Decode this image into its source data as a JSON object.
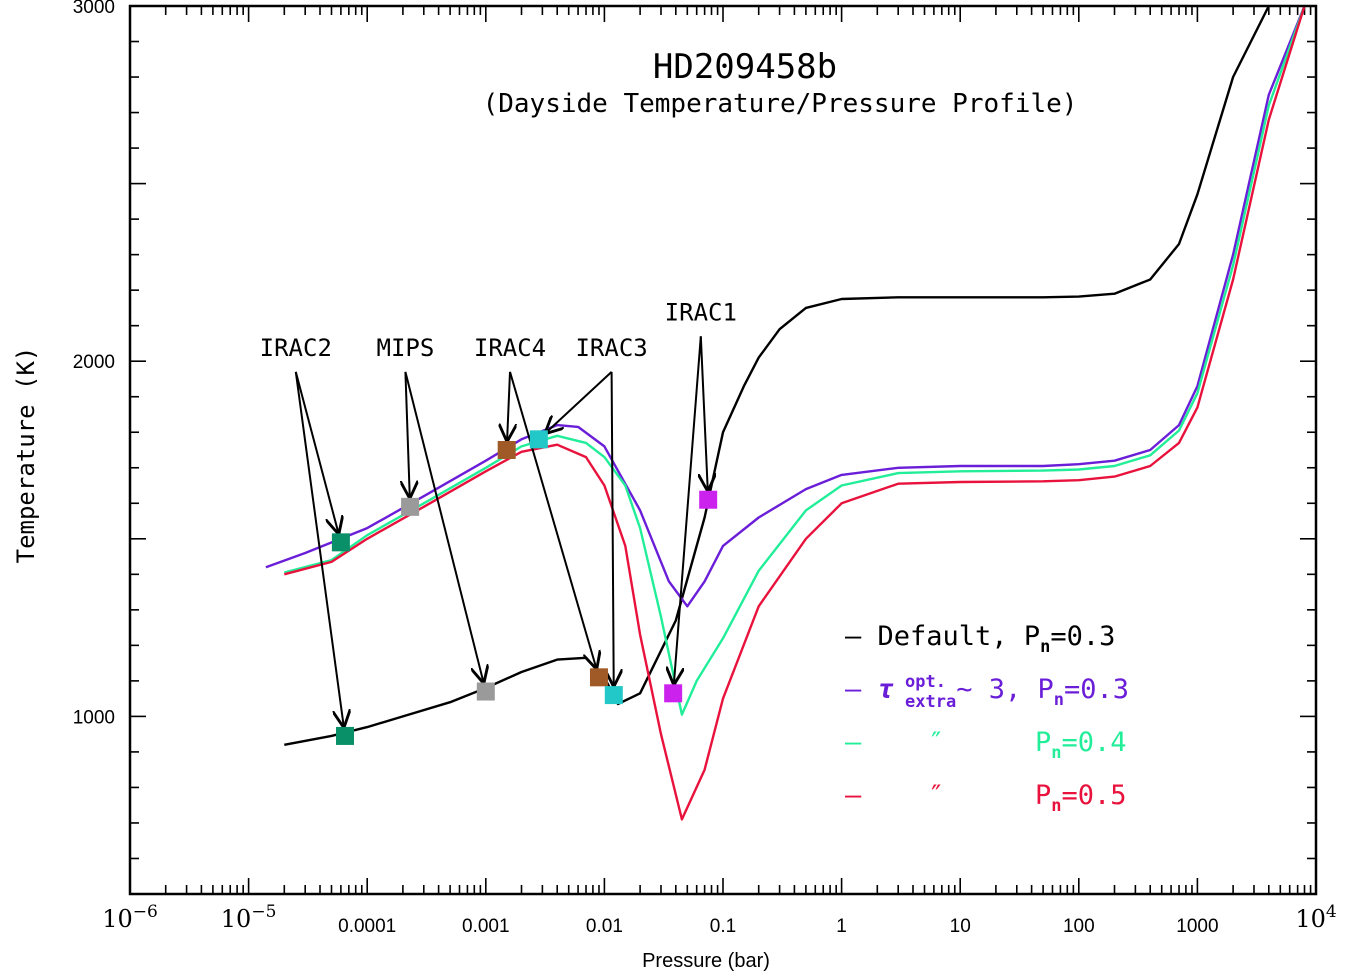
{
  "chart_data": {
    "type": "line",
    "title": "HD209458b",
    "subtitle": "(Dayside Temperature/Pressure Profile)",
    "xlabel": "Pressure (bar)",
    "ylabel": "Temperature (K)",
    "x_scale": "log",
    "xlim": [
      1e-06,
      10000
    ],
    "ylim": [
      500,
      3000
    ],
    "x_ticks": [
      {
        "value": 1e-06,
        "label": "10",
        "exp": "−6",
        "style": "big"
      },
      {
        "value": 1e-05,
        "label": "10",
        "exp": "−5",
        "style": "big"
      },
      {
        "value": 0.0001,
        "label": "0.0001"
      },
      {
        "value": 0.001,
        "label": "0.001"
      },
      {
        "value": 0.01,
        "label": "0.01"
      },
      {
        "value": 0.1,
        "label": "0.1"
      },
      {
        "value": 1,
        "label": "1"
      },
      {
        "value": 10,
        "label": "10"
      },
      {
        "value": 100,
        "label": "100"
      },
      {
        "value": 1000,
        "label": "1000"
      },
      {
        "value": 10000,
        "label": "10",
        "exp": "4",
        "style": "big"
      }
    ],
    "y_ticks": [
      {
        "value": 1000,
        "label": "1000"
      },
      {
        "value": 2000,
        "label": "2000"
      },
      {
        "value": 3000,
        "label": "3000"
      }
    ],
    "series": [
      {
        "name": "Default, Pn=0.3",
        "color": "#000000",
        "points": [
          [
            2e-05,
            920
          ],
          [
            5e-05,
            945
          ],
          [
            0.0001,
            970
          ],
          [
            0.0002,
            1000
          ],
          [
            0.0005,
            1040
          ],
          [
            0.001,
            1080
          ],
          [
            0.002,
            1125
          ],
          [
            0.004,
            1160
          ],
          [
            0.007,
            1165
          ],
          [
            0.01,
            1110
          ],
          [
            0.013,
            1035
          ],
          [
            0.02,
            1065
          ],
          [
            0.04,
            1270
          ],
          [
            0.07,
            1560
          ],
          [
            0.1,
            1800
          ],
          [
            0.15,
            1930
          ],
          [
            0.2,
            2010
          ],
          [
            0.3,
            2090
          ],
          [
            0.5,
            2150
          ],
          [
            1,
            2175
          ],
          [
            3,
            2180
          ],
          [
            10,
            2180
          ],
          [
            50,
            2180
          ],
          [
            100,
            2182
          ],
          [
            200,
            2190
          ],
          [
            400,
            2230
          ],
          [
            700,
            2330
          ],
          [
            1000,
            2470
          ],
          [
            2000,
            2800
          ],
          [
            4000,
            3000
          ]
        ]
      },
      {
        "name": "τ extra opt. ~ 3, Pn=0.3",
        "color": "#6a1ed8",
        "points": [
          [
            1.4e-05,
            1420
          ],
          [
            3e-05,
            1460
          ],
          [
            0.0001,
            1530
          ],
          [
            0.0003,
            1620
          ],
          [
            0.001,
            1720
          ],
          [
            0.002,
            1780
          ],
          [
            0.004,
            1820
          ],
          [
            0.006,
            1815
          ],
          [
            0.01,
            1760
          ],
          [
            0.02,
            1580
          ],
          [
            0.035,
            1380
          ],
          [
            0.05,
            1310
          ],
          [
            0.07,
            1380
          ],
          [
            0.1,
            1480
          ],
          [
            0.2,
            1560
          ],
          [
            0.5,
            1640
          ],
          [
            1,
            1680
          ],
          [
            3,
            1700
          ],
          [
            10,
            1705
          ],
          [
            50,
            1705
          ],
          [
            100,
            1710
          ],
          [
            200,
            1720
          ],
          [
            400,
            1750
          ],
          [
            700,
            1820
          ],
          [
            1000,
            1930
          ],
          [
            2000,
            2300
          ],
          [
            4000,
            2750
          ],
          [
            8000,
            3000
          ]
        ]
      },
      {
        "name": "Pn=0.4",
        "color": "#22ee99",
        "points": [
          [
            2e-05,
            1405
          ],
          [
            5e-05,
            1440
          ],
          [
            0.0001,
            1510
          ],
          [
            0.0003,
            1600
          ],
          [
            0.001,
            1700
          ],
          [
            0.002,
            1760
          ],
          [
            0.004,
            1790
          ],
          [
            0.007,
            1770
          ],
          [
            0.01,
            1730
          ],
          [
            0.015,
            1650
          ],
          [
            0.02,
            1530
          ],
          [
            0.03,
            1280
          ],
          [
            0.045,
            1005
          ],
          [
            0.06,
            1100
          ],
          [
            0.1,
            1220
          ],
          [
            0.2,
            1410
          ],
          [
            0.5,
            1580
          ],
          [
            1,
            1650
          ],
          [
            3,
            1685
          ],
          [
            10,
            1690
          ],
          [
            50,
            1692
          ],
          [
            100,
            1695
          ],
          [
            200,
            1705
          ],
          [
            400,
            1735
          ],
          [
            700,
            1805
          ],
          [
            1000,
            1910
          ],
          [
            2000,
            2270
          ],
          [
            4000,
            2720
          ],
          [
            8000,
            3000
          ]
        ]
      },
      {
        "name": "Pn=0.5",
        "color": "#e8123c",
        "points": [
          [
            2e-05,
            1400
          ],
          [
            5e-05,
            1435
          ],
          [
            0.0001,
            1500
          ],
          [
            0.0003,
            1590
          ],
          [
            0.001,
            1690
          ],
          [
            0.002,
            1745
          ],
          [
            0.004,
            1765
          ],
          [
            0.007,
            1730
          ],
          [
            0.01,
            1650
          ],
          [
            0.015,
            1480
          ],
          [
            0.02,
            1230
          ],
          [
            0.03,
            950
          ],
          [
            0.045,
            710
          ],
          [
            0.07,
            850
          ],
          [
            0.1,
            1050
          ],
          [
            0.2,
            1310
          ],
          [
            0.5,
            1500
          ],
          [
            1,
            1600
          ],
          [
            3,
            1655
          ],
          [
            10,
            1660
          ],
          [
            50,
            1662
          ],
          [
            100,
            1665
          ],
          [
            200,
            1675
          ],
          [
            400,
            1705
          ],
          [
            700,
            1770
          ],
          [
            1000,
            1870
          ],
          [
            2000,
            2230
          ],
          [
            4000,
            2680
          ],
          [
            8000,
            3000
          ]
        ]
      }
    ],
    "markers": [
      {
        "band": "IRAC2",
        "x": 6e-05,
        "y": 1490,
        "color": "#0a9068"
      },
      {
        "band": "MIPS",
        "x": 0.00023,
        "y": 1590,
        "color": "#9a9a9a"
      },
      {
        "band": "IRAC4",
        "x": 0.0015,
        "y": 1750,
        "color": "#a05a28"
      },
      {
        "band": "IRAC3",
        "x": 0.0028,
        "y": 1780,
        "color": "#22c8c8"
      },
      {
        "band": "IRAC1",
        "x": 0.075,
        "y": 1610,
        "color": "#cc22ee"
      },
      {
        "band": "IRAC2",
        "x": 6.5e-05,
        "y": 945,
        "color": "#0a9068"
      },
      {
        "band": "MIPS",
        "x": 0.001,
        "y": 1070,
        "color": "#9a9a9a"
      },
      {
        "band": "IRAC4",
        "x": 0.009,
        "y": 1110,
        "color": "#a05a28"
      },
      {
        "band": "IRAC3",
        "x": 0.012,
        "y": 1060,
        "color": "#22c8c8"
      },
      {
        "band": "IRAC1",
        "x": 0.038,
        "y": 1065,
        "color": "#cc22ee"
      }
    ],
    "annotations": [
      {
        "label": "IRAC2",
        "x": 2.5e-05,
        "y": 1970,
        "targets": [
          0,
          5
        ]
      },
      {
        "label": "MIPS",
        "x": 0.00021,
        "y": 1970,
        "targets": [
          1,
          6
        ]
      },
      {
        "label": "IRAC4",
        "x": 0.0016,
        "y": 1970,
        "targets": [
          2,
          7
        ]
      },
      {
        "label": "IRAC3",
        "x": 0.0115,
        "y": 1970,
        "targets": [
          3,
          8
        ]
      },
      {
        "label": "IRAC1",
        "x": 0.065,
        "y": 2070,
        "targets": [
          4,
          9
        ]
      }
    ],
    "legend": {
      "placement": "bottom-right",
      "entries": [
        {
          "color": "#000000",
          "dash": "–",
          "pre": "Default,",
          "tau": false,
          "ditto": false,
          "pn": "0.3"
        },
        {
          "color": "#6a1ed8",
          "dash": "–",
          "pre": "",
          "tau": true,
          "approx": "~ 3,",
          "ditto": false,
          "pn": "0.3"
        },
        {
          "color": "#22ee99",
          "dash": "–",
          "pre": "",
          "tau": false,
          "ditto": true,
          "pn": "0.4"
        },
        {
          "color": "#e8123c",
          "dash": "–",
          "pre": "",
          "tau": false,
          "ditto": true,
          "pn": "0.5"
        }
      ],
      "tau_symbol": "τ",
      "tau_sup": "opt.",
      "tau_sub": "extra",
      "ditto_mark": "″",
      "pn_base": "P",
      "pn_sub": "n",
      "pn_eq": "="
    }
  }
}
